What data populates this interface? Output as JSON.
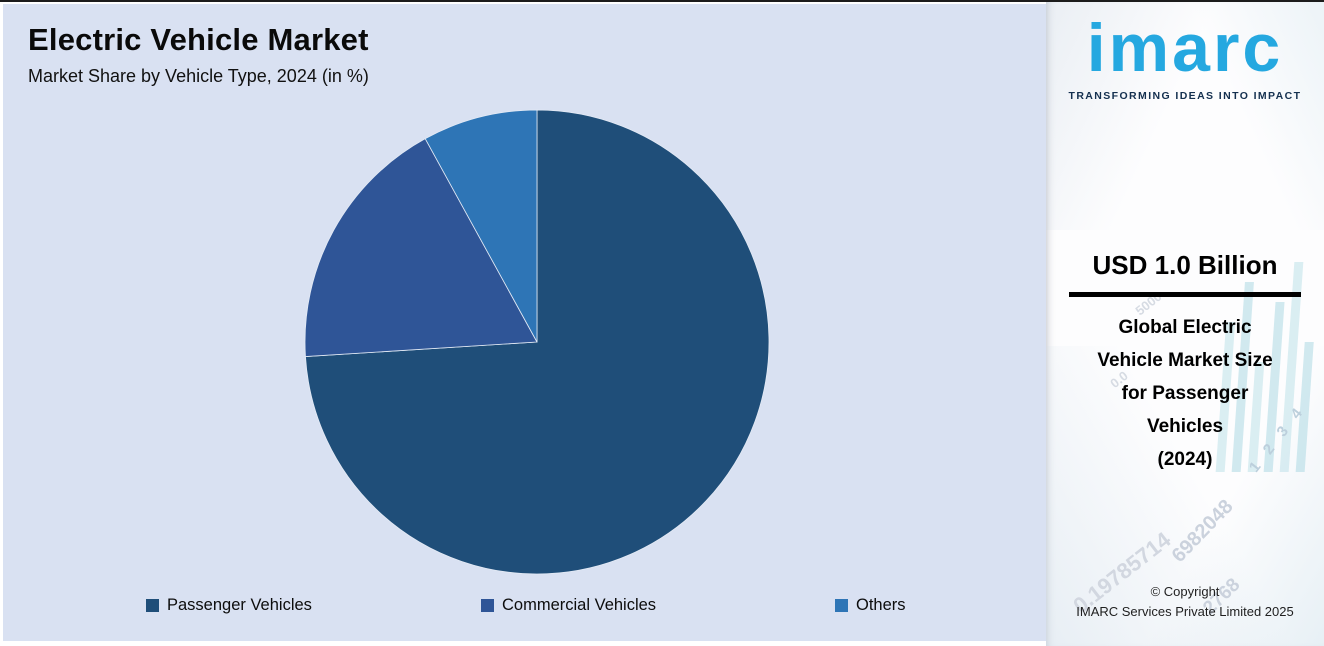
{
  "header": {
    "title": "Electric Vehicle Market",
    "subtitle": "Market Share by Vehicle Type, 2024 (in %)"
  },
  "chart_data": {
    "type": "pie",
    "title": "Electric Vehicle Market",
    "subtitle": "Market Share by Vehicle Type, 2024 (in %)",
    "unit": "%",
    "start_angle_deg": 0,
    "direction": "clockwise",
    "legend_position": "bottom",
    "data_labels": false,
    "background_color": "#D9E1F2",
    "slices": [
      {
        "label": "Passenger Vehicles",
        "value": 74,
        "color": "#1F4E79"
      },
      {
        "label": "Commercial Vehicles",
        "value": 18,
        "color": "#2F5597"
      },
      {
        "label": "Others",
        "value": 8,
        "color": "#2E75B6"
      }
    ]
  },
  "panel": {
    "logo_text": "imarc",
    "tagline": "TRANSFORMING IDEAS INTO IMPACT",
    "brand_color": "#25A8E0",
    "stat_value": "USD 1.0 Billion",
    "stat_description_lines": [
      "Global Electric",
      "Vehicle Market Size",
      "for Passenger",
      "Vehicles",
      "(2024)"
    ],
    "copyright_line1": "© Copyright",
    "copyright_line2": "IMARC Services Private Limited 2025",
    "watermark_numbers": [
      "6982048",
      "0.19785714",
      "2768",
      "1 2 3 4",
      "5000",
      "0.0"
    ]
  }
}
